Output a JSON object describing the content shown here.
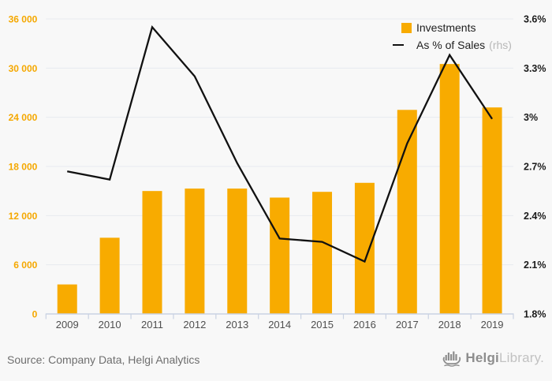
{
  "chart_data": {
    "type": "bar+line",
    "categories": [
      "2009",
      "2010",
      "2011",
      "2012",
      "2013",
      "2014",
      "2015",
      "2016",
      "2017",
      "2018",
      "2019"
    ],
    "series": [
      {
        "name": "Investments",
        "type": "bar",
        "axis": "left",
        "values": [
          3600,
          9300,
          15000,
          15300,
          15300,
          14200,
          14900,
          16000,
          24900,
          30500,
          25200
        ]
      },
      {
        "name": "As % of Sales",
        "type": "line",
        "axis": "right",
        "axis_note": "(rhs)",
        "values": [
          2.67,
          2.62,
          3.55,
          3.25,
          2.72,
          2.26,
          2.24,
          2.12,
          2.84,
          3.38,
          2.99
        ]
      }
    ],
    "left_axis": {
      "min": 0,
      "max": 36000,
      "ticks": [
        {
          "value": 0,
          "label": "0"
        },
        {
          "value": 6000,
          "label": "6 000"
        },
        {
          "value": 12000,
          "label": "12 000"
        },
        {
          "value": 18000,
          "label": "18 000"
        },
        {
          "value": 24000,
          "label": "24 000"
        },
        {
          "value": 30000,
          "label": "30 000"
        },
        {
          "value": 36000,
          "label": "36 000"
        }
      ]
    },
    "right_axis": {
      "min": 1.8,
      "max": 3.6,
      "ticks": [
        {
          "value": 1.8,
          "label": "1.8%"
        },
        {
          "value": 2.1,
          "label": "2.1%"
        },
        {
          "value": 2.4,
          "label": "2.4%"
        },
        {
          "value": 2.7,
          "label": "2.7%"
        },
        {
          "value": 3.0,
          "label": "3%"
        },
        {
          "value": 3.3,
          "label": "3.3%"
        },
        {
          "value": 3.6,
          "label": "3.6%"
        }
      ]
    },
    "grid": "horizontal",
    "legend_position": "top-right"
  },
  "footer": {
    "source": "Source: Company Data, Helgi Analytics",
    "brand_primary": "Helgi",
    "brand_secondary": "Library."
  },
  "colors": {
    "bar": "#F8AB00",
    "line": "#111111",
    "left_axis_text": "#F5A800",
    "right_axis_text": "#1b1b1b",
    "grid": "#e7eaef",
    "axis": "#c9d2e2",
    "background": "#f8f8f8",
    "year_text": "#4f4f4f",
    "rhs_note": "#b8b8b8",
    "source_text": "#6e6e6e",
    "logo_dark": "#8d8d8d",
    "logo_light": "#c2c2c2"
  }
}
